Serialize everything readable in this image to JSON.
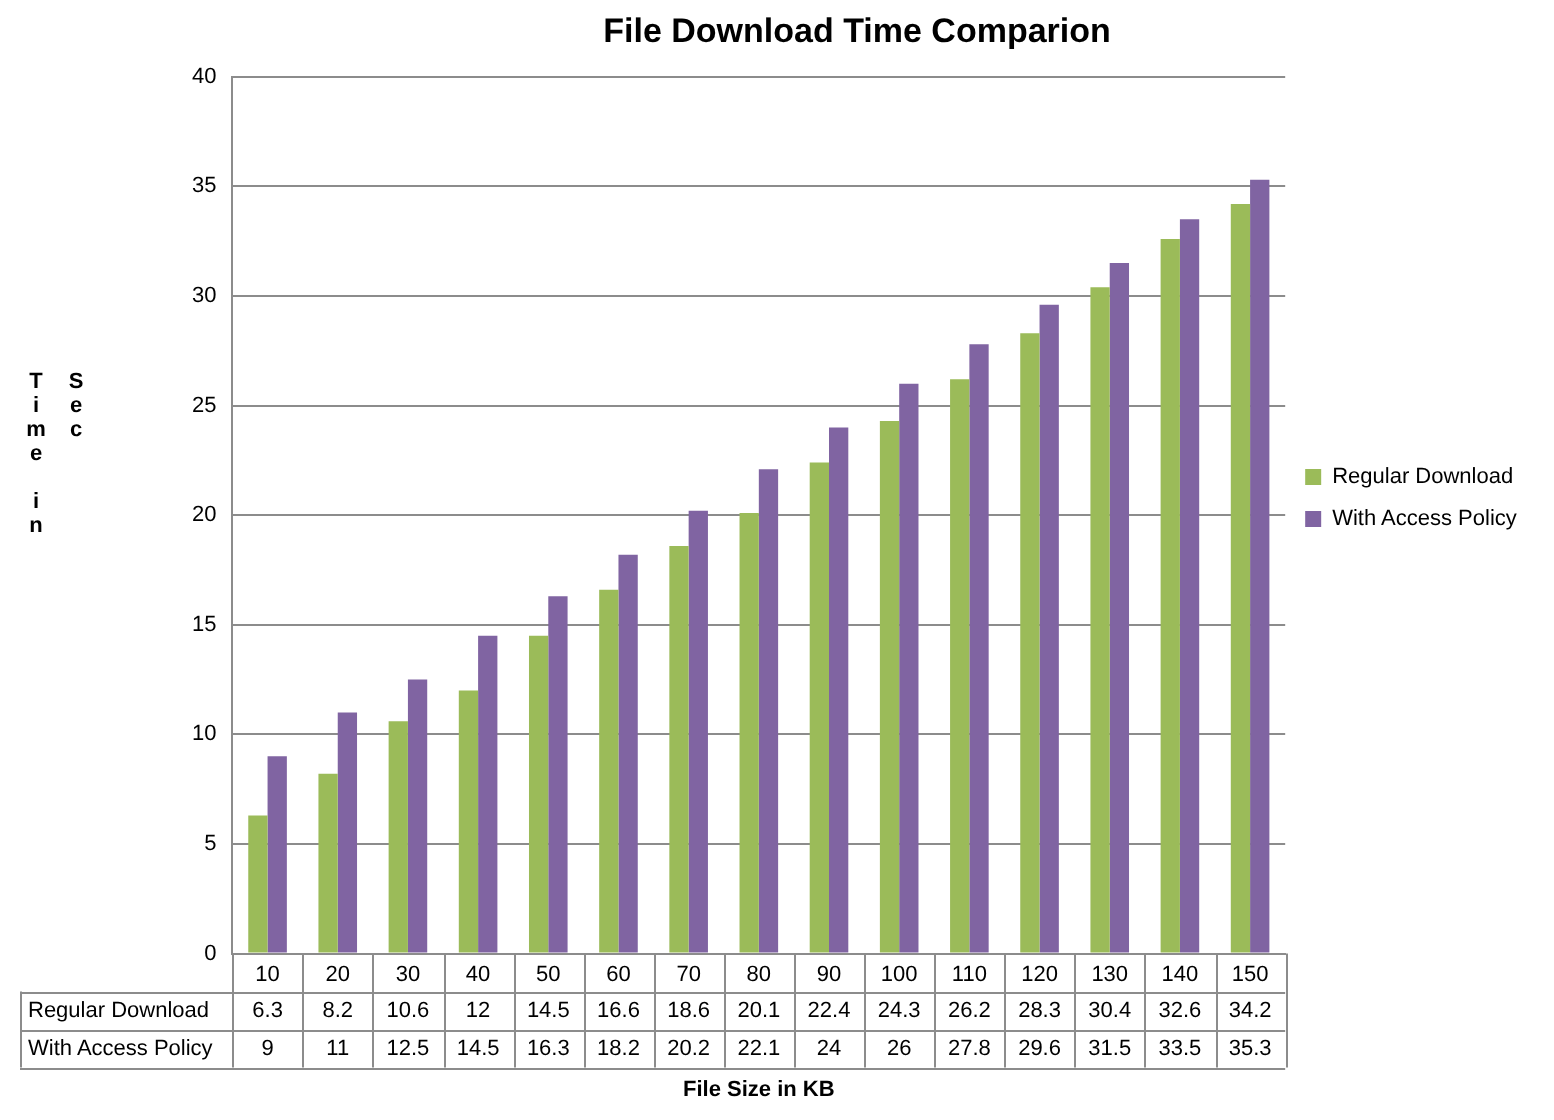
{
  "chart_data": {
    "type": "bar",
    "title": "File Download Time Comparion",
    "xlabel": "File Size in KB",
    "ylabel": "Time in Sec",
    "categories": [
      "10",
      "20",
      "30",
      "40",
      "50",
      "60",
      "70",
      "80",
      "90",
      "100",
      "110",
      "120",
      "130",
      "140",
      "150"
    ],
    "series": [
      {
        "name": "Regular Download",
        "color": "#9bbb59",
        "values": [
          6.3,
          8.2,
          10.6,
          12,
          14.5,
          16.6,
          18.6,
          20.1,
          22.4,
          24.3,
          26.2,
          28.3,
          30.4,
          32.6,
          34.2
        ]
      },
      {
        "name": "With Access Policy",
        "color": "#8064a2",
        "values": [
          9,
          11,
          12.5,
          14.5,
          16.3,
          18.2,
          20.2,
          22.1,
          24,
          26,
          27.8,
          29.6,
          31.5,
          33.5,
          35.3
        ]
      }
    ],
    "ylim": [
      0,
      40
    ],
    "yticks": [
      0,
      5,
      10,
      15,
      20,
      25,
      30,
      35,
      40
    ],
    "grid": "y",
    "legend": "right",
    "data_labels": true
  }
}
